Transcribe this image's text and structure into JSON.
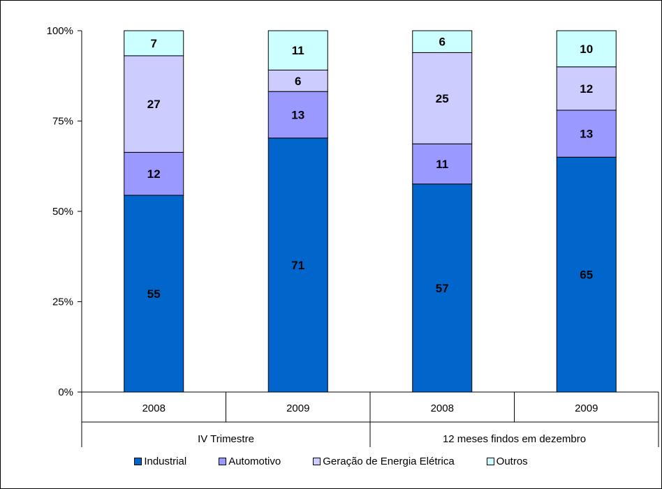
{
  "chart_data": {
    "type": "bar",
    "stacked": true,
    "normalized_percent": true,
    "categories": [
      "2008",
      "2009",
      "2008",
      "2009"
    ],
    "category_groups": [
      {
        "label": "IV Trimestre",
        "span": 2
      },
      {
        "label": "12 meses findos em dezembro",
        "span": 2
      }
    ],
    "series": [
      {
        "name": "Industrial",
        "color": "#0066CC",
        "values": [
          55,
          71,
          57,
          65
        ]
      },
      {
        "name": "Automotivo",
        "color": "#9999FF",
        "values": [
          12,
          13,
          11,
          13
        ]
      },
      {
        "name": "Geração de Energia Elétrica",
        "color": "#CCCCFF",
        "values": [
          27,
          6,
          25,
          12
        ]
      },
      {
        "name": "Outros",
        "color": "#CCFFFF",
        "values": [
          7,
          11,
          6,
          10
        ]
      }
    ],
    "yticks": [
      "0%",
      "25%",
      "50%",
      "75%",
      "100%"
    ],
    "ylim": [
      0,
      100
    ],
    "grid": false,
    "legend_position": "bottom"
  }
}
